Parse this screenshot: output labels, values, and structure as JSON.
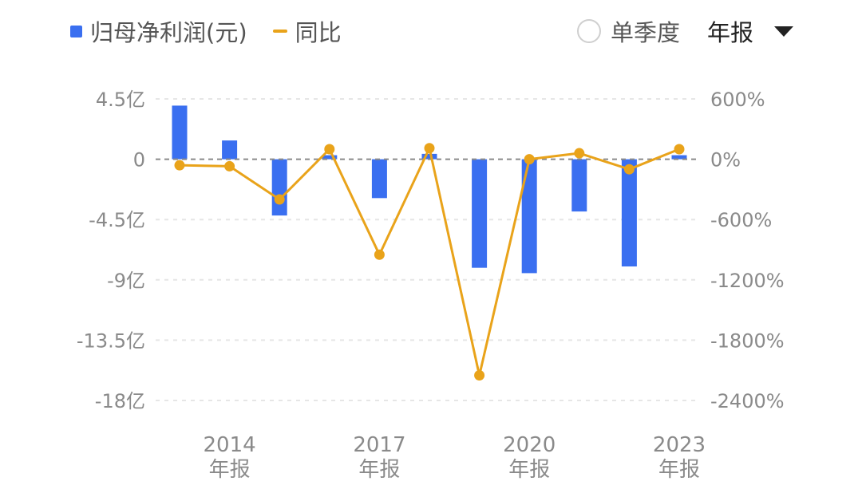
{
  "legend": {
    "bar_label": "归母净利润(元)",
    "line_label": "同比"
  },
  "controls": {
    "single_quarter": "单季度",
    "annual": "年报"
  },
  "colors": {
    "bar": "#3a6ff0",
    "line": "#e9a31a",
    "grid": "#e6e6e6",
    "zero_line": "#8a8a8a"
  },
  "chart_data": {
    "type": "bar",
    "title": "",
    "x": [
      2013,
      2014,
      2015,
      2016,
      2017,
      2018,
      2019,
      2020,
      2021,
      2022,
      2023
    ],
    "x_tick_labels": [
      {
        "x": 2014,
        "year": "2014",
        "period": "年报"
      },
      {
        "x": 2017,
        "year": "2017",
        "period": "年报"
      },
      {
        "x": 2020,
        "year": "2020",
        "period": "年报"
      },
      {
        "x": 2023,
        "year": "2023",
        "period": "年报"
      }
    ],
    "series": [
      {
        "name": "归母净利润(元)",
        "type": "bar",
        "axis": "left",
        "unit": "亿",
        "values": [
          4.0,
          1.4,
          -4.2,
          0.3,
          -2.9,
          0.4,
          -8.1,
          -8.5,
          -3.9,
          -8.0,
          0.3
        ]
      },
      {
        "name": "同比",
        "type": "line",
        "axis": "right",
        "unit": "%",
        "values": [
          -60,
          -70,
          -400,
          100,
          -950,
          110,
          -2150,
          0,
          60,
          -100,
          100
        ]
      }
    ],
    "y_left": {
      "min": -18,
      "max": 4.5,
      "ticks": [
        4.5,
        0,
        -4.5,
        -9,
        -13.5,
        -18
      ],
      "tick_labels": [
        "4.5亿",
        "0",
        "-4.5亿",
        "-9亿",
        "-13.5亿",
        "-18亿"
      ]
    },
    "y_right": {
      "min": -2400,
      "max": 600,
      "ticks": [
        600,
        0,
        -600,
        -1200,
        -1800,
        -2400
      ],
      "tick_labels": [
        "600%",
        "0%",
        "-600%",
        "-1200%",
        "-1800%",
        "-2400%"
      ]
    },
    "grid": true,
    "legend_position": "top-left"
  }
}
